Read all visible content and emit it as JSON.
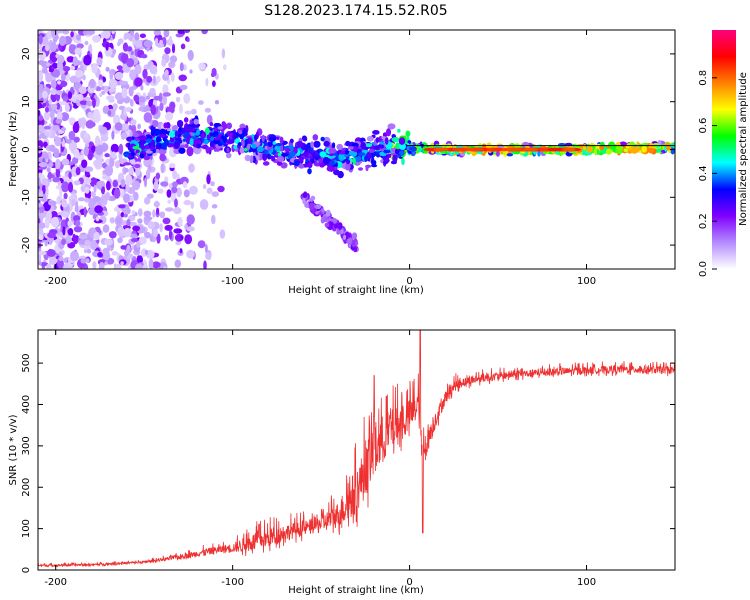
{
  "title": "S128.2023.174.15.52.R05",
  "chart_data": [
    {
      "type": "heatmap",
      "title": "S128.2023.174.15.52.R05",
      "xlabel": "Height of straight line (km)",
      "ylabel": "Frequency (Hz)",
      "xlim": [
        -210,
        150
      ],
      "ylim": [
        -25,
        25
      ],
      "xticks": [
        -200,
        -100,
        0,
        100
      ],
      "xtick_labels": [
        "-200",
        "-100",
        "0",
        "100"
      ],
      "yticks": [
        -20,
        -10,
        0,
        10,
        20
      ],
      "ytick_labels": [
        "-20",
        "-10",
        "0",
        "10",
        "20"
      ],
      "signal_track": {
        "x": [
          -210,
          -160,
          -140,
          -120,
          -100,
          -80,
          -60,
          -40,
          -30,
          -20,
          -10,
          0,
          20,
          60,
          100,
          150
        ],
        "y": [
          0,
          0,
          2,
          3,
          2,
          0,
          -1,
          -2,
          -1,
          0,
          0.5,
          0.5,
          0,
          0,
          0,
          0.5
        ]
      },
      "reference_line": {
        "from_x": -2,
        "to_x": 150,
        "y": 0.8
      },
      "colorbar": {
        "label": "Normalized spectral amplitude",
        "range": [
          0,
          1
        ],
        "ticks": [
          0.0,
          0.2,
          0.4,
          0.6,
          0.8
        ],
        "tick_labels": [
          "0.0",
          "0.2",
          "0.4",
          "0.6",
          "0.8"
        ],
        "colors": [
          "#ffffff",
          "#b48cff",
          "#8000ff",
          "#0000ff",
          "#00ffff",
          "#00ff00",
          "#ffff00",
          "#ff8000",
          "#ff0000",
          "#ff0080"
        ]
      }
    },
    {
      "type": "line",
      "xlabel": "Height of straight line (km)",
      "ylabel": "SNR (10 * v/v)",
      "xlim": [
        -210,
        150
      ],
      "ylim": [
        0,
        580
      ],
      "xticks": [
        -200,
        -100,
        0,
        100
      ],
      "xtick_labels": [
        "-200",
        "-100",
        "0",
        "100"
      ],
      "yticks": [
        0,
        100,
        200,
        300,
        400,
        500
      ],
      "ytick_labels": [
        "0",
        "100",
        "200",
        "300",
        "400",
        "500"
      ],
      "color": "#ee3030",
      "series": [
        {
          "name": "SNR",
          "x": [
            -210,
            -180,
            -150,
            -130,
            -110,
            -100,
            -90,
            -80,
            -70,
            -60,
            -50,
            -40,
            -35,
            -30,
            -25,
            -20,
            -15,
            -10,
            -5,
            0,
            5,
            7,
            10,
            15,
            20,
            25,
            30,
            40,
            60,
            80,
            100,
            120,
            150
          ],
          "values": [
            10,
            12,
            18,
            30,
            45,
            50,
            60,
            70,
            85,
            95,
            105,
            125,
            150,
            175,
            220,
            270,
            300,
            325,
            340,
            360,
            390,
            270,
            300,
            360,
            410,
            440,
            450,
            460,
            470,
            475,
            480,
            482,
            480
          ],
          "spike_amplitude": [
            6,
            6,
            6,
            12,
            20,
            25,
            45,
            50,
            45,
            40,
            45,
            70,
            110,
            120,
            140,
            150,
            130,
            110,
            100,
            90,
            80,
            70,
            60,
            40,
            35,
            30,
            25,
            22,
            20,
            20,
            20,
            20,
            20
          ]
        }
      ],
      "annotations": [
        {
          "x": 6,
          "y": 580,
          "text": ""
        },
        {
          "x": -20,
          "y": 480,
          "text": ""
        },
        {
          "x": 7,
          "y": 90,
          "text": ""
        }
      ]
    }
  ]
}
